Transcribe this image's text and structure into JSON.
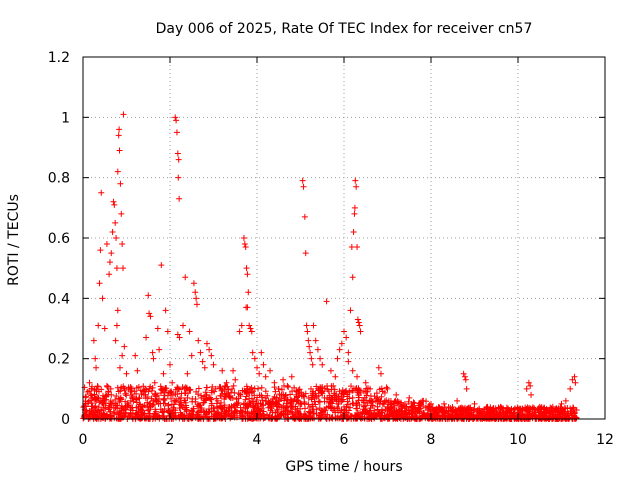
{
  "chart_data": {
    "type": "scatter",
    "title": "Day 006 of 2025, Rate Of TEC Index for receiver cn57",
    "xlabel": "GPS time / hours",
    "ylabel": "ROTI / TECUs",
    "xlim": [
      0,
      12
    ],
    "ylim": [
      0,
      1.2
    ],
    "xticks": [
      "0",
      "2",
      "4",
      "6",
      "8",
      "10",
      "12"
    ],
    "yticks": [
      "0",
      "0.2",
      "0.4",
      "0.6",
      "0.8",
      "1",
      "1.2"
    ],
    "grid": true,
    "marker": "plus",
    "color": "#ff0000",
    "series": [
      {
        "name": "ROTI",
        "points": [
          [
            0.25,
            0.26
          ],
          [
            0.28,
            0.2
          ],
          [
            0.3,
            0.17
          ],
          [
            0.35,
            0.31
          ],
          [
            0.38,
            0.45
          ],
          [
            0.4,
            0.56
          ],
          [
            0.42,
            0.75
          ],
          [
            0.45,
            0.4
          ],
          [
            0.5,
            0.3
          ],
          [
            0.55,
            0.58
          ],
          [
            0.6,
            0.48
          ],
          [
            0.62,
            0.52
          ],
          [
            0.65,
            0.55
          ],
          [
            0.68,
            0.62
          ],
          [
            0.7,
            0.72
          ],
          [
            0.72,
            0.71
          ],
          [
            0.74,
            0.65
          ],
          [
            0.76,
            0.6
          ],
          [
            0.78,
            0.5
          ],
          [
            0.8,
            0.82
          ],
          [
            0.82,
            0.94
          ],
          [
            0.83,
            0.96
          ],
          [
            0.84,
            0.89
          ],
          [
            0.86,
            0.78
          ],
          [
            0.88,
            0.68
          ],
          [
            0.9,
            0.58
          ],
          [
            0.92,
            0.5
          ],
          [
            0.93,
            1.01
          ],
          [
            0.95,
            0.24
          ],
          [
            0.9,
            0.21
          ],
          [
            0.85,
            0.17
          ],
          [
            0.8,
            0.36
          ],
          [
            0.78,
            0.31
          ],
          [
            0.75,
            0.26
          ],
          [
            1.0,
            0.15
          ],
          [
            1.05,
            0.1
          ],
          [
            1.2,
            0.21
          ],
          [
            1.25,
            0.16
          ],
          [
            1.45,
            0.27
          ],
          [
            1.5,
            0.41
          ],
          [
            1.52,
            0.35
          ],
          [
            1.55,
            0.34
          ],
          [
            1.6,
            0.22
          ],
          [
            1.62,
            0.2
          ],
          [
            1.65,
            0.12
          ],
          [
            1.72,
            0.3
          ],
          [
            1.75,
            0.23
          ],
          [
            1.8,
            0.51
          ],
          [
            1.85,
            0.15
          ],
          [
            1.9,
            0.36
          ],
          [
            1.95,
            0.29
          ],
          [
            2.0,
            0.18
          ],
          [
            2.05,
            0.12
          ],
          [
            2.12,
            1.0
          ],
          [
            2.14,
            0.99
          ],
          [
            2.16,
            0.95
          ],
          [
            2.18,
            0.88
          ],
          [
            2.2,
            0.86
          ],
          [
            2.19,
            0.8
          ],
          [
            2.21,
            0.73
          ],
          [
            2.18,
            0.28
          ],
          [
            2.22,
            0.27
          ],
          [
            2.3,
            0.31
          ],
          [
            2.35,
            0.47
          ],
          [
            2.4,
            0.15
          ],
          [
            2.45,
            0.29
          ],
          [
            2.5,
            0.21
          ],
          [
            2.55,
            0.45
          ],
          [
            2.58,
            0.42
          ],
          [
            2.6,
            0.4
          ],
          [
            2.62,
            0.38
          ],
          [
            2.65,
            0.26
          ],
          [
            2.7,
            0.22
          ],
          [
            2.75,
            0.19
          ],
          [
            2.8,
            0.17
          ],
          [
            2.85,
            0.25
          ],
          [
            2.9,
            0.23
          ],
          [
            2.95,
            0.21
          ],
          [
            3.0,
            0.18
          ],
          [
            3.05,
            0.1
          ],
          [
            3.2,
            0.16
          ],
          [
            3.3,
            0.12
          ],
          [
            3.45,
            0.16
          ],
          [
            3.5,
            0.13
          ],
          [
            3.6,
            0.29
          ],
          [
            3.65,
            0.31
          ],
          [
            3.7,
            0.6
          ],
          [
            3.72,
            0.58
          ],
          [
            3.74,
            0.57
          ],
          [
            3.76,
            0.5
          ],
          [
            3.78,
            0.48
          ],
          [
            3.8,
            0.42
          ],
          [
            3.75,
            0.37
          ],
          [
            3.78,
            0.37
          ],
          [
            3.82,
            0.31
          ],
          [
            3.85,
            0.3
          ],
          [
            3.88,
            0.29
          ],
          [
            3.9,
            0.22
          ],
          [
            3.95,
            0.2
          ],
          [
            4.0,
            0.17
          ],
          [
            4.05,
            0.15
          ],
          [
            4.1,
            0.22
          ],
          [
            4.15,
            0.18
          ],
          [
            4.2,
            0.14
          ],
          [
            4.3,
            0.16
          ],
          [
            4.4,
            0.12
          ],
          [
            4.5,
            0.1
          ],
          [
            4.6,
            0.13
          ],
          [
            4.7,
            0.11
          ],
          [
            4.8,
            0.14
          ],
          [
            4.9,
            0.08
          ],
          [
            5.05,
            0.79
          ],
          [
            5.07,
            0.77
          ],
          [
            5.1,
            0.67
          ],
          [
            5.12,
            0.55
          ],
          [
            5.14,
            0.31
          ],
          [
            5.16,
            0.29
          ],
          [
            5.18,
            0.26
          ],
          [
            5.2,
            0.24
          ],
          [
            5.22,
            0.22
          ],
          [
            5.25,
            0.2
          ],
          [
            5.28,
            0.18
          ],
          [
            5.3,
            0.31
          ],
          [
            5.35,
            0.26
          ],
          [
            5.4,
            0.23
          ],
          [
            5.45,
            0.2
          ],
          [
            5.5,
            0.18
          ],
          [
            5.6,
            0.39
          ],
          [
            5.7,
            0.16
          ],
          [
            5.8,
            0.14
          ],
          [
            5.85,
            0.2
          ],
          [
            5.9,
            0.23
          ],
          [
            5.95,
            0.25
          ],
          [
            6.0,
            0.29
          ],
          [
            6.05,
            0.27
          ],
          [
            6.1,
            0.22
          ],
          [
            6.15,
            0.36
          ],
          [
            6.18,
            0.57
          ],
          [
            6.2,
            0.47
          ],
          [
            6.22,
            0.62
          ],
          [
            6.24,
            0.68
          ],
          [
            6.25,
            0.7
          ],
          [
            6.26,
            0.79
          ],
          [
            6.28,
            0.77
          ],
          [
            6.3,
            0.57
          ],
          [
            6.32,
            0.33
          ],
          [
            6.34,
            0.32
          ],
          [
            6.36,
            0.31
          ],
          [
            6.38,
            0.29
          ],
          [
            6.1,
            0.19
          ],
          [
            6.2,
            0.16
          ],
          [
            6.3,
            0.14
          ],
          [
            6.5,
            0.12
          ],
          [
            6.6,
            0.1
          ],
          [
            6.8,
            0.17
          ],
          [
            6.85,
            0.15
          ],
          [
            7.0,
            0.1
          ],
          [
            7.2,
            0.08
          ],
          [
            7.5,
            0.07
          ],
          [
            7.8,
            0.06
          ],
          [
            8.0,
            0.05
          ],
          [
            8.3,
            0.05
          ],
          [
            8.6,
            0.06
          ],
          [
            8.75,
            0.15
          ],
          [
            8.78,
            0.14
          ],
          [
            8.8,
            0.13
          ],
          [
            8.82,
            0.1
          ],
          [
            9.0,
            0.05
          ],
          [
            9.3,
            0.04
          ],
          [
            9.6,
            0.04
          ],
          [
            9.9,
            0.03
          ],
          [
            10.2,
            0.1
          ],
          [
            10.25,
            0.12
          ],
          [
            10.28,
            0.11
          ],
          [
            10.3,
            0.08
          ],
          [
            10.5,
            0.04
          ],
          [
            10.8,
            0.04
          ],
          [
            11.0,
            0.05
          ],
          [
            11.1,
            0.06
          ],
          [
            11.2,
            0.1
          ],
          [
            11.25,
            0.13
          ],
          [
            11.3,
            0.14
          ],
          [
            11.32,
            0.12
          ],
          [
            11.35,
            0.03
          ],
          [
            0.05,
            0.05
          ],
          [
            0.1,
            0.09
          ],
          [
            0.15,
            0.12
          ],
          [
            0.2,
            0.07
          ],
          [
            0.3,
            0.06
          ],
          [
            0.55,
            0.11
          ],
          [
            0.65,
            0.08
          ],
          [
            1.1,
            0.06
          ],
          [
            1.3,
            0.07
          ],
          [
            1.4,
            0.08
          ],
          [
            1.7,
            0.06
          ],
          [
            2.25,
            0.07
          ],
          [
            2.6,
            0.09
          ],
          [
            3.1,
            0.06
          ],
          [
            3.4,
            0.07
          ],
          [
            4.2,
            0.06
          ],
          [
            4.45,
            0.07
          ],
          [
            4.95,
            0.06
          ],
          [
            5.55,
            0.07
          ],
          [
            6.45,
            0.06
          ],
          [
            7.0,
            0.04
          ],
          [
            7.4,
            0.05
          ],
          [
            8.2,
            0.03
          ],
          [
            9.5,
            0.03
          ]
        ]
      }
    ]
  }
}
